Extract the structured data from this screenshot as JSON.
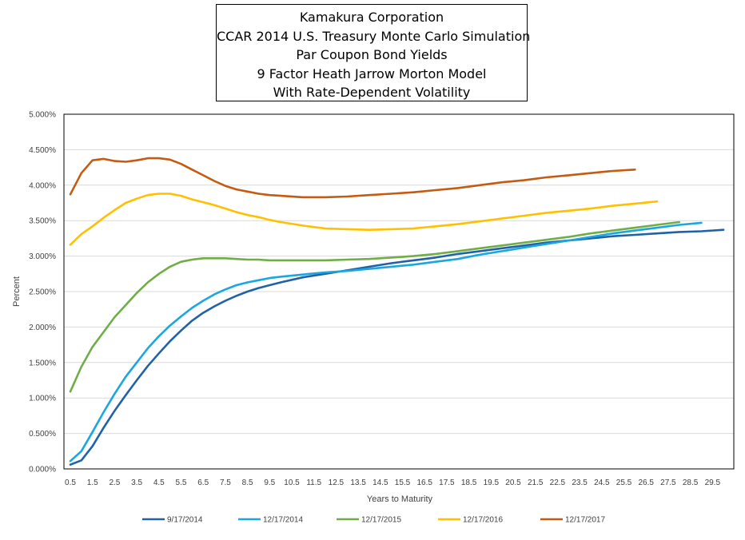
{
  "chart_data": {
    "type": "line",
    "title_lines": [
      "Kamakura Corporation",
      "CCAR 2014 U.S. Treasury Monte Carlo Simulation",
      "Par Coupon Bond Yields",
      "9 Factor Heath Jarrow Morton Model",
      "With Rate-Dependent Volatility"
    ],
    "xlabel": "Years to Maturity",
    "ylabel": "Percent",
    "xlim": [
      0.5,
      30
    ],
    "ylim": [
      0,
      5
    ],
    "yticks": [
      "0.000%",
      "0.500%",
      "1.000%",
      "1.500%",
      "2.000%",
      "2.500%",
      "3.000%",
      "3.500%",
      "4.000%",
      "4.500%",
      "5.000%"
    ],
    "xticks": [
      "0.5",
      "1.5",
      "2.5",
      "3.5",
      "4.5",
      "5.5",
      "6.5",
      "7.5",
      "8.5",
      "9.5",
      "10.5",
      "11.5",
      "12.5",
      "13.5",
      "14.5",
      "15.5",
      "16.5",
      "17.5",
      "18.5",
      "19.5",
      "20.5",
      "21.5",
      "22.5",
      "23.5",
      "24.5",
      "25.5",
      "26.5",
      "27.5",
      "28.5",
      "29.5"
    ],
    "grid": true,
    "legend_position": "bottom",
    "series": [
      {
        "name": "9/17/2014",
        "color": "#1f62a8",
        "points": [
          [
            0.5,
            0.06
          ],
          [
            1,
            0.12
          ],
          [
            1.5,
            0.32
          ],
          [
            2,
            0.58
          ],
          [
            2.5,
            0.82
          ],
          [
            3,
            1.04
          ],
          [
            3.5,
            1.25
          ],
          [
            4,
            1.45
          ],
          [
            4.5,
            1.63
          ],
          [
            5,
            1.8
          ],
          [
            5.5,
            1.95
          ],
          [
            6,
            2.09
          ],
          [
            6.5,
            2.2
          ],
          [
            7,
            2.29
          ],
          [
            7.5,
            2.37
          ],
          [
            8,
            2.44
          ],
          [
            8.5,
            2.5
          ],
          [
            9,
            2.55
          ],
          [
            9.5,
            2.59
          ],
          [
            10,
            2.63
          ],
          [
            11,
            2.7
          ],
          [
            12,
            2.75
          ],
          [
            13,
            2.8
          ],
          [
            14,
            2.85
          ],
          [
            15,
            2.9
          ],
          [
            16,
            2.94
          ],
          [
            17,
            2.98
          ],
          [
            18,
            3.03
          ],
          [
            19,
            3.07
          ],
          [
            20,
            3.11
          ],
          [
            21,
            3.15
          ],
          [
            22,
            3.19
          ],
          [
            23,
            3.22
          ],
          [
            24,
            3.25
          ],
          [
            25,
            3.28
          ],
          [
            26,
            3.3
          ],
          [
            27,
            3.32
          ],
          [
            28,
            3.34
          ],
          [
            29,
            3.35
          ],
          [
            30,
            3.37
          ]
        ]
      },
      {
        "name": "12/17/2014",
        "color": "#1aa7e0",
        "points": [
          [
            0.5,
            0.11
          ],
          [
            1,
            0.25
          ],
          [
            1.5,
            0.52
          ],
          [
            2,
            0.8
          ],
          [
            2.5,
            1.06
          ],
          [
            3,
            1.3
          ],
          [
            3.5,
            1.5
          ],
          [
            4,
            1.7
          ],
          [
            4.5,
            1.87
          ],
          [
            5,
            2.02
          ],
          [
            5.5,
            2.15
          ],
          [
            6,
            2.27
          ],
          [
            6.5,
            2.37
          ],
          [
            7,
            2.46
          ],
          [
            7.5,
            2.53
          ],
          [
            8,
            2.59
          ],
          [
            8.5,
            2.63
          ],
          [
            9,
            2.66
          ],
          [
            9.5,
            2.69
          ],
          [
            10,
            2.71
          ],
          [
            11,
            2.74
          ],
          [
            12,
            2.77
          ],
          [
            13,
            2.79
          ],
          [
            14,
            2.82
          ],
          [
            15,
            2.85
          ],
          [
            16,
            2.88
          ],
          [
            17,
            2.92
          ],
          [
            18,
            2.96
          ],
          [
            19,
            3.02
          ],
          [
            20,
            3.07
          ],
          [
            21,
            3.12
          ],
          [
            22,
            3.17
          ],
          [
            23,
            3.22
          ],
          [
            24,
            3.27
          ],
          [
            25,
            3.32
          ],
          [
            26,
            3.36
          ],
          [
            27,
            3.4
          ],
          [
            28,
            3.44
          ],
          [
            29,
            3.47
          ]
        ]
      },
      {
        "name": "12/17/2015",
        "color": "#70ad47",
        "points": [
          [
            0.5,
            1.09
          ],
          [
            1,
            1.44
          ],
          [
            1.5,
            1.72
          ],
          [
            2,
            1.93
          ],
          [
            2.5,
            2.14
          ],
          [
            3,
            2.31
          ],
          [
            3.5,
            2.48
          ],
          [
            4,
            2.63
          ],
          [
            4.5,
            2.75
          ],
          [
            5,
            2.85
          ],
          [
            5.5,
            2.92
          ],
          [
            6,
            2.95
          ],
          [
            6.5,
            2.97
          ],
          [
            7,
            2.97
          ],
          [
            7.5,
            2.97
          ],
          [
            8,
            2.96
          ],
          [
            8.5,
            2.95
          ],
          [
            9,
            2.95
          ],
          [
            9.5,
            2.94
          ],
          [
            10,
            2.94
          ],
          [
            11,
            2.94
          ],
          [
            12,
            2.94
          ],
          [
            13,
            2.95
          ],
          [
            14,
            2.96
          ],
          [
            15,
            2.98
          ],
          [
            16,
            3
          ],
          [
            17,
            3.03
          ],
          [
            18,
            3.07
          ],
          [
            19,
            3.11
          ],
          [
            20,
            3.15
          ],
          [
            21,
            3.19
          ],
          [
            22,
            3.23
          ],
          [
            23,
            3.27
          ],
          [
            24,
            3.32
          ],
          [
            25,
            3.36
          ],
          [
            26,
            3.4
          ],
          [
            27,
            3.44
          ],
          [
            28,
            3.48
          ]
        ]
      },
      {
        "name": "12/17/2016",
        "color": "#ffc000",
        "points": [
          [
            0.5,
            3.16
          ],
          [
            1,
            3.31
          ],
          [
            1.5,
            3.42
          ],
          [
            2,
            3.54
          ],
          [
            2.5,
            3.65
          ],
          [
            3,
            3.75
          ],
          [
            3.5,
            3.81
          ],
          [
            4,
            3.86
          ],
          [
            4.5,
            3.88
          ],
          [
            5,
            3.88
          ],
          [
            5.5,
            3.85
          ],
          [
            6,
            3.8
          ],
          [
            6.5,
            3.76
          ],
          [
            7,
            3.72
          ],
          [
            7.5,
            3.67
          ],
          [
            8,
            3.62
          ],
          [
            8.5,
            3.58
          ],
          [
            9,
            3.55
          ],
          [
            9.5,
            3.51
          ],
          [
            10,
            3.48
          ],
          [
            11,
            3.43
          ],
          [
            12,
            3.39
          ],
          [
            13,
            3.38
          ],
          [
            14,
            3.37
          ],
          [
            15,
            3.38
          ],
          [
            16,
            3.39
          ],
          [
            17,
            3.42
          ],
          [
            18,
            3.45
          ],
          [
            19,
            3.49
          ],
          [
            20,
            3.53
          ],
          [
            21,
            3.57
          ],
          [
            22,
            3.61
          ],
          [
            23,
            3.64
          ],
          [
            24,
            3.67
          ],
          [
            25,
            3.71
          ],
          [
            26,
            3.74
          ],
          [
            27,
            3.77
          ]
        ]
      },
      {
        "name": "12/17/2017",
        "color": "#c55a11",
        "points": [
          [
            0.5,
            3.87
          ],
          [
            1,
            4.17
          ],
          [
            1.5,
            4.35
          ],
          [
            2,
            4.37
          ],
          [
            2.5,
            4.34
          ],
          [
            3,
            4.33
          ],
          [
            3.5,
            4.35
          ],
          [
            4,
            4.38
          ],
          [
            4.5,
            4.38
          ],
          [
            5,
            4.36
          ],
          [
            5.5,
            4.3
          ],
          [
            6,
            4.22
          ],
          [
            6.5,
            4.14
          ],
          [
            7,
            4.06
          ],
          [
            7.5,
            3.99
          ],
          [
            8,
            3.94
          ],
          [
            8.5,
            3.91
          ],
          [
            9,
            3.88
          ],
          [
            9.5,
            3.86
          ],
          [
            10,
            3.85
          ],
          [
            11,
            3.83
          ],
          [
            12,
            3.83
          ],
          [
            13,
            3.84
          ],
          [
            14,
            3.86
          ],
          [
            15,
            3.88
          ],
          [
            16,
            3.9
          ],
          [
            17,
            3.93
          ],
          [
            18,
            3.96
          ],
          [
            19,
            4
          ],
          [
            20,
            4.04
          ],
          [
            21,
            4.07
          ],
          [
            22,
            4.11
          ],
          [
            23,
            4.14
          ],
          [
            24,
            4.17
          ],
          [
            25,
            4.2
          ],
          [
            26,
            4.22
          ]
        ]
      }
    ]
  }
}
